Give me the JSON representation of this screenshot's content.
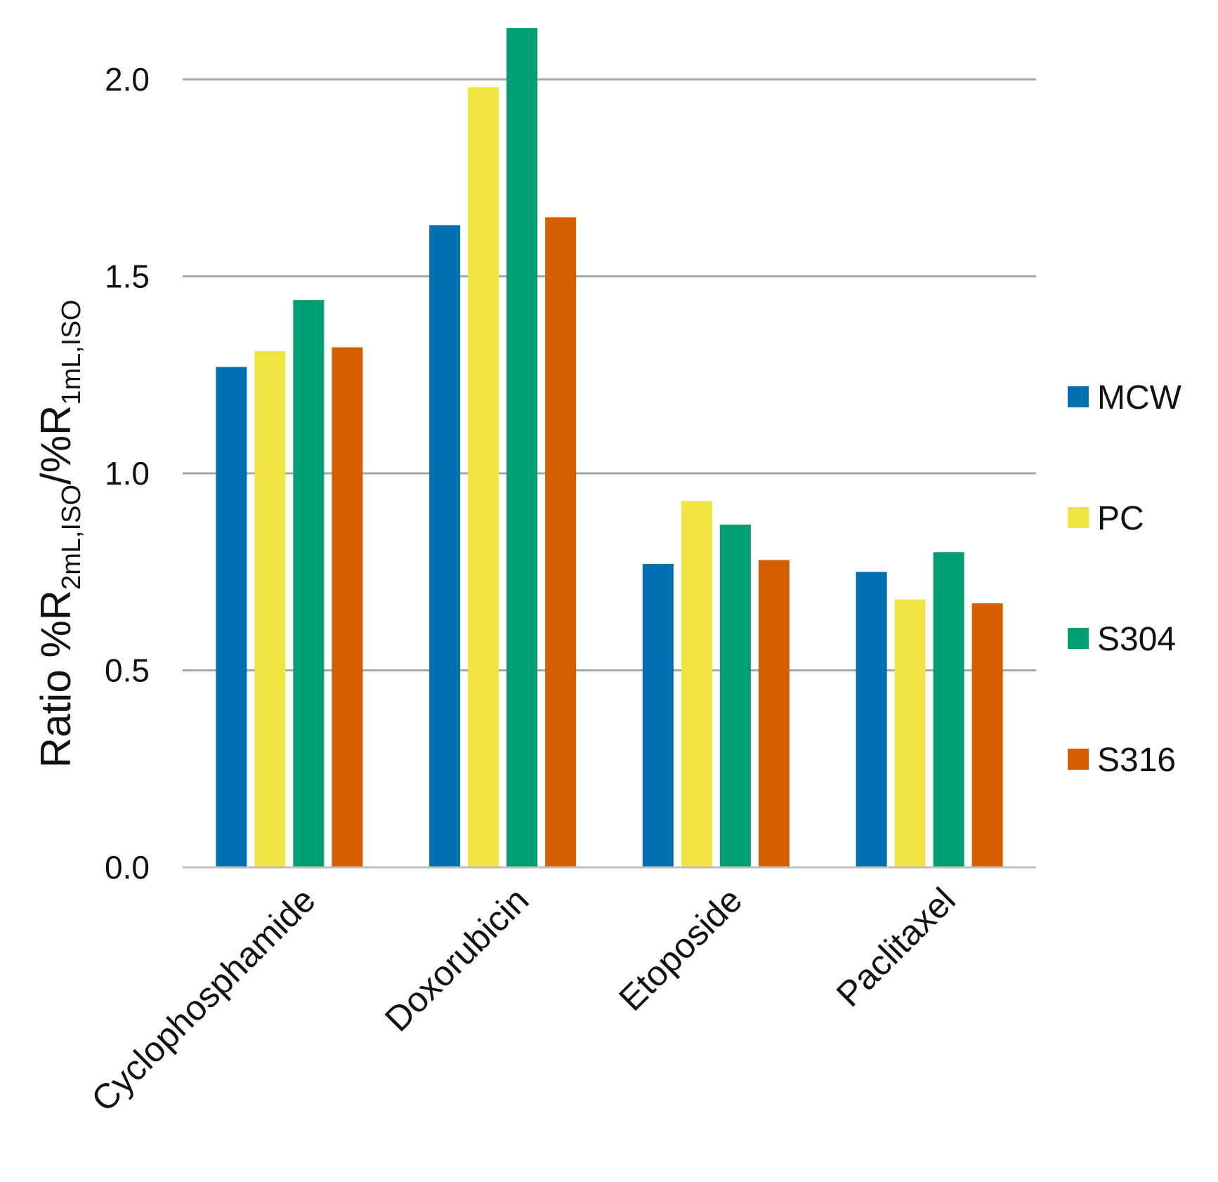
{
  "chart_data": {
    "type": "bar",
    "title": "",
    "xlabel": "",
    "ylabel": {
      "prefix": "Ratio %R",
      "sub1": "2mL,ISO",
      "mid": "/%R",
      "sub2": "1mL,ISO"
    },
    "ylim": [
      0,
      2.0
    ],
    "yticks": [
      "0.0",
      "0.5",
      "1.0",
      "1.5",
      "2.0"
    ],
    "ytick_values": [
      0,
      0.5,
      1.0,
      1.5,
      2.0
    ],
    "grid": true,
    "legend_position": "right",
    "categories": [
      "Cyclophosphamide",
      "Doxorubicin",
      "Etoposide",
      "Paclitaxel"
    ],
    "series": [
      {
        "name": "MCW",
        "color": "#0070b0",
        "values": [
          1.27,
          1.63,
          0.77,
          0.75
        ]
      },
      {
        "name": "PC",
        "color": "#f0e442",
        "values": [
          1.31,
          1.98,
          0.93,
          0.68
        ]
      },
      {
        "name": "S304",
        "color": "#009e73",
        "values": [
          1.44,
          2.13,
          0.87,
          0.8
        ]
      },
      {
        "name": "S316",
        "color": "#d55e00",
        "values": [
          1.32,
          1.65,
          0.78,
          0.67
        ]
      }
    ]
  }
}
